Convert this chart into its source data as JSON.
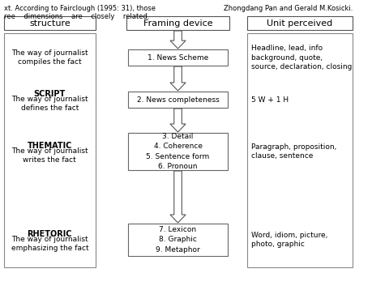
{
  "title_top_left": "structure",
  "title_top_center": "Framing device",
  "title_top_right": "Unit perceived",
  "left_box_items": [
    {
      "label": "",
      "text": "The way of journalist\ncompiles the fact"
    },
    {
      "label": "SCRIPT",
      "text": "The way of journalist\ndefines the fact"
    },
    {
      "label": "THEMATIC",
      "text": "The way of journalist\nwrites the fact"
    },
    {
      "label": "RHETORIC",
      "text": "The way of journalist\nemphasizing the fact"
    }
  ],
  "center_box_texts": [
    "1. News Scheme",
    "2. News completeness",
    "3. Detail\n4. Coherence\n5. Sentence form\n6. Pronoun",
    "7. Lexicon\n8. Graphic\n9. Metaphor"
  ],
  "right_texts": [
    "Headline, lead, info\nbackground, quote,\nsource, declaration, closing",
    "5 W + 1 H",
    "Paragraph, proposition,\nclause, sentence",
    "Word, idiom, picture,\nphoto, graphic"
  ],
  "bg_color": "#ffffff",
  "text_color": "#000000",
  "font_size": 7,
  "header_font_size": 8,
  "top_label_left": "xt. According to Fairclough (1995: 31), those",
  "top_label_right": "Zhongdang Pan and Gerald M.Kosicki.",
  "top_label2": "ree    dimensions    are    closely    related."
}
